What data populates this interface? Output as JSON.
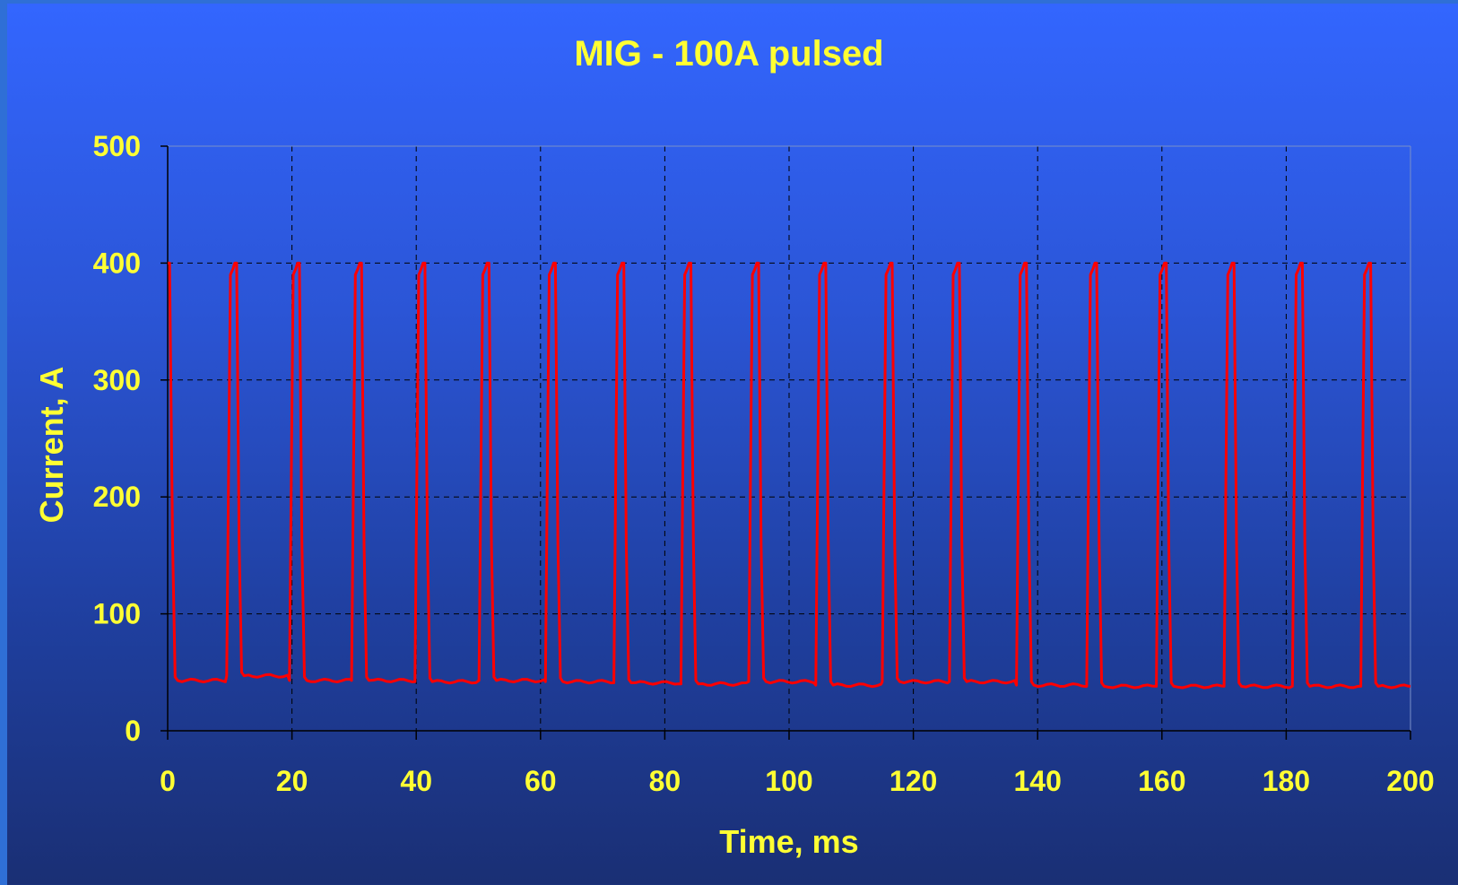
{
  "colors": {
    "text": "#ffff33",
    "series": "#ff0000",
    "grid": "#000000"
  },
  "chart_data": {
    "type": "line",
    "title": "MIG - 100A pulsed",
    "xlabel": "Time, ms",
    "ylabel": "Current, A",
    "xlim": [
      0,
      200
    ],
    "ylim": [
      0,
      500
    ],
    "xticks": [
      0,
      20,
      40,
      60,
      80,
      100,
      120,
      140,
      160,
      180,
      200
    ],
    "yticks": [
      0,
      100,
      200,
      300,
      400,
      500
    ],
    "grid": true,
    "legend": "none",
    "pulse": {
      "peak_current": 400,
      "background_current": 42,
      "period_ms": 11.0,
      "pulse_width_ms": 1.6
    },
    "series": [
      {
        "pulse_starts": [
          0.0,
          9.5,
          19.6,
          29.6,
          39.8,
          50.1,
          60.8,
          71.8,
          82.6,
          93.5,
          104.3,
          115.0,
          125.8,
          136.6,
          147.9,
          159.1,
          170.0,
          181.0,
          192.0
        ],
        "baseline_levels": [
          43,
          47,
          43,
          43,
          42,
          43,
          42,
          41,
          40,
          42,
          39,
          42,
          42,
          39,
          38,
          38,
          38,
          38,
          38
        ]
      }
    ]
  }
}
